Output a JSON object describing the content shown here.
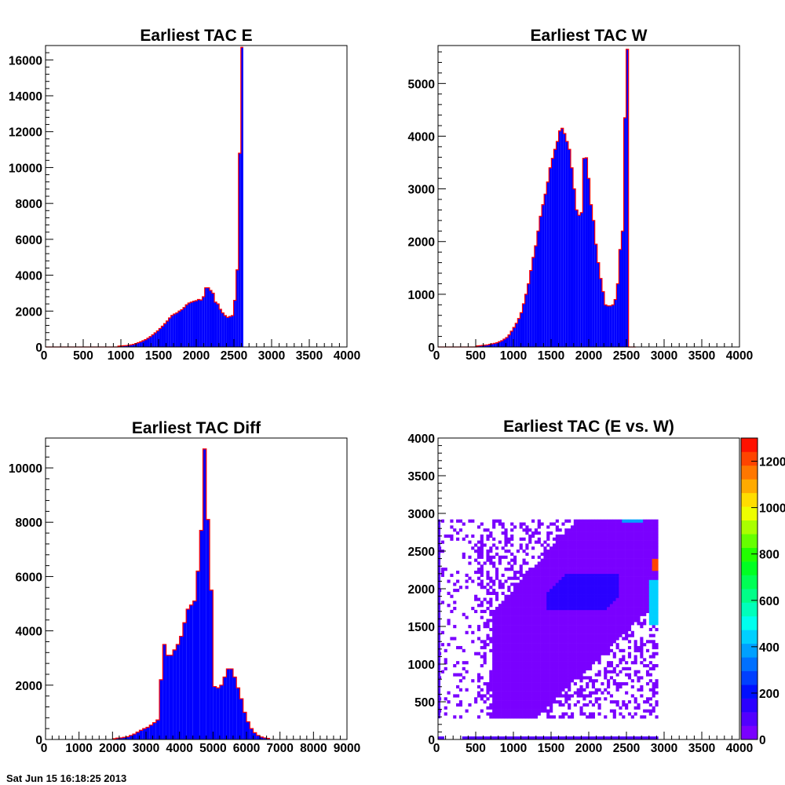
{
  "footer_text": "Sat Jun 15 16:18:25 2013",
  "chart_data": [
    {
      "type": "bar",
      "title": "Earliest TAC E",
      "xlabel": "",
      "ylabel": "",
      "xlim": [
        0,
        4000
      ],
      "ylim": [
        0,
        16800
      ],
      "xticks": [
        "0",
        "500",
        "1000",
        "1500",
        "2000",
        "2500",
        "3000",
        "3500",
        "4000"
      ],
      "yticks": [
        "0",
        "2000",
        "4000",
        "6000",
        "8000",
        "10000",
        "12000",
        "14000",
        "16000"
      ],
      "bin_width": 32,
      "bin_start": 0,
      "fill_color": "#0000ff",
      "outline_color": "#ff0000",
      "values": [
        0,
        0,
        0,
        0,
        0,
        0,
        0,
        0,
        0,
        0,
        0,
        0,
        0,
        0,
        0,
        0,
        0,
        0,
        0,
        0,
        0,
        0,
        0,
        0,
        0,
        0,
        0,
        0,
        0,
        0,
        50,
        60,
        70,
        80,
        100,
        120,
        150,
        190,
        240,
        290,
        350,
        410,
        490,
        580,
        680,
        790,
        900,
        1030,
        1160,
        1300,
        1450,
        1620,
        1760,
        1840,
        1900,
        2000,
        2080,
        2200,
        2350,
        2450,
        2500,
        2550,
        2580,
        2650,
        2620,
        2800,
        3300,
        3300,
        3150,
        3000,
        2500,
        2400,
        2100,
        1900,
        1750,
        1650,
        1700,
        1750,
        2600,
        4300,
        10800,
        16700
      ]
    },
    {
      "type": "bar",
      "title": "Earliest TAC W",
      "xlabel": "",
      "ylabel": "",
      "xlim": [
        0,
        4000
      ],
      "ylim": [
        0,
        5720
      ],
      "xticks": [
        "0",
        "500",
        "1000",
        "1500",
        "2000",
        "2500",
        "3000",
        "3500",
        "4000"
      ],
      "yticks": [
        "0",
        "1000",
        "2000",
        "3000",
        "4000",
        "5000"
      ],
      "bin_width": 32,
      "bin_start": 0,
      "fill_color": "#0000ff",
      "outline_color": "#ff0000",
      "values": [
        0,
        0,
        0,
        0,
        0,
        0,
        0,
        0,
        0,
        0,
        0,
        0,
        0,
        0,
        0,
        0,
        20,
        25,
        30,
        35,
        40,
        50,
        60,
        70,
        80,
        100,
        120,
        150,
        180,
        230,
        300,
        370,
        450,
        540,
        650,
        820,
        1000,
        1200,
        1450,
        1700,
        1920,
        2200,
        2480,
        2700,
        2900,
        3130,
        3400,
        3580,
        3750,
        3900,
        4100,
        4150,
        4050,
        3900,
        3750,
        3400,
        3000,
        2600,
        2500,
        2550,
        3580,
        3590,
        3200,
        2700,
        2400,
        1950,
        1600,
        1300,
        1050,
        800,
        780,
        780,
        800,
        900,
        1200,
        1850,
        2200,
        4350,
        5650,
        0,
        0,
        0
      ]
    },
    {
      "type": "bar",
      "title": "Earliest TAC Diff",
      "xlabel": "",
      "ylabel": "",
      "xlim": [
        0,
        9000
      ],
      "ylim": [
        0,
        11100
      ],
      "xticks": [
        "0",
        "1000",
        "2000",
        "3000",
        "4000",
        "5000",
        "6000",
        "7000",
        "8000",
        "9000"
      ],
      "yticks": [
        "0",
        "2000",
        "4000",
        "6000",
        "8000",
        "10000"
      ],
      "bin_width": 100,
      "bin_start": 2000,
      "fill_color": "#0000ff",
      "outline_color": "#ff0000",
      "values": [
        30,
        50,
        60,
        80,
        100,
        150,
        200,
        270,
        340,
        400,
        450,
        530,
        620,
        720,
        2200,
        3500,
        3100,
        3100,
        3300,
        3500,
        3800,
        4300,
        4800,
        4950,
        5100,
        6200,
        7700,
        10700,
        8100,
        5500,
        1950,
        1900,
        2000,
        2300,
        2600,
        2600,
        2300,
        1900,
        1500,
        1000,
        650,
        400,
        250,
        150,
        90,
        60,
        40
      ]
    },
    {
      "type": "heatmap",
      "title": "Earliest TAC (E vs. W)",
      "xlabel": "",
      "ylabel": "",
      "xlim": [
        0,
        4000
      ],
      "ylim": [
        0,
        4000
      ],
      "xticks": [
        "0",
        "500",
        "1000",
        "1500",
        "2000",
        "2500",
        "3000",
        "3500",
        "4000"
      ],
      "yticks": [
        "0",
        "500",
        "1000",
        "1500",
        "2000",
        "2500",
        "3000",
        "3500",
        "4000"
      ],
      "z_range": [
        0,
        1300
      ],
      "colorbar_ticks": [
        "0",
        "200",
        "400",
        "600",
        "800",
        "1000",
        "1200"
      ],
      "palette": [
        "#7a00ff",
        "#5200ff",
        "#2a00ff",
        "#0010ff",
        "#0040ff",
        "#0070ff",
        "#00a0ff",
        "#00d0ff",
        "#00ffee",
        "#00ffbb",
        "#00ff88",
        "#00ff55",
        "#00ff22",
        "#22ff00",
        "#66ff00",
        "#aaff00",
        "#eeff00",
        "#ffdd00",
        "#ffaa00",
        "#ff7700",
        "#ff4400",
        "#ff1100"
      ]
    }
  ]
}
